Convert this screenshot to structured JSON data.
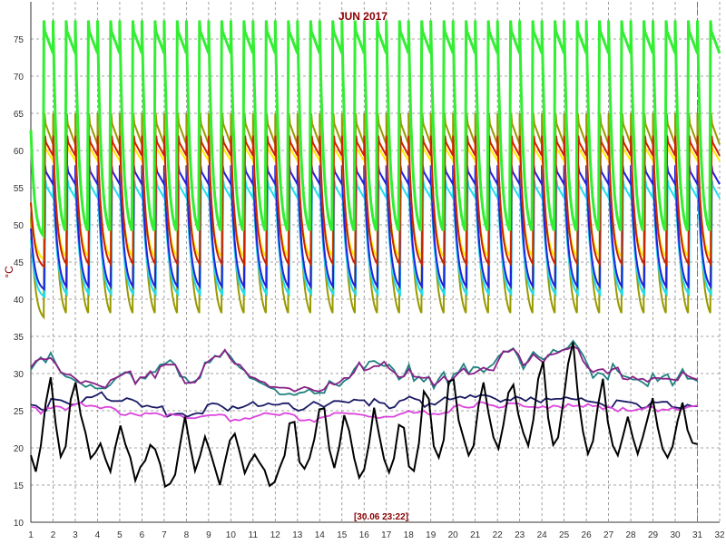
{
  "chart_data": {
    "type": "line",
    "title": "JUN 2017",
    "ylabel": "°C",
    "timestamp": "[30.06 23:22]",
    "ylim": [
      10,
      80
    ],
    "xlim": [
      1,
      32
    ],
    "y_ticks": [
      "10",
      "15",
      "20",
      "25",
      "30",
      "35",
      "40",
      "45",
      "50",
      "55",
      "60",
      "65",
      "70",
      "75"
    ],
    "x_ticks": [
      "1",
      "2",
      "3",
      "4",
      "5",
      "6",
      "7",
      "8",
      "9",
      "10",
      "11",
      "12",
      "13",
      "14",
      "15",
      "16",
      "17",
      "18",
      "19",
      "20",
      "21",
      "22",
      "23",
      "24",
      "25",
      "26",
      "27",
      "28",
      "29",
      "30",
      "31",
      "32"
    ],
    "grid": true,
    "cursor_x": 31,
    "colors": {
      "green": "#33ee33",
      "olive": "#999900",
      "red": "#cc2200",
      "yellow": "#ffee00",
      "blue": "#2222dd",
      "cyan": "#22ddee",
      "teal": "#208080",
      "purple": "#882288",
      "navy": "#1a1a66",
      "magenta": "#dd44dd",
      "black": "#000000",
      "cursor": "#22aa22",
      "grid": "#888888"
    },
    "daily_cycle": {
      "green": {
        "peak": 77.5,
        "trough": 48
      },
      "olive": {
        "peak": 65,
        "trough": 37
      },
      "red": {
        "peak": 62,
        "trough": 44
      },
      "yellow": {
        "peak": 61,
        "trough": 45
      },
      "blue": {
        "peak": 58,
        "trough": 41
      },
      "cyan": {
        "peak": 56,
        "trough": 40
      }
    },
    "series": [
      {
        "key": "teal",
        "values": [
          30.5,
          31.5,
          32.2,
          31.5,
          32.8,
          31.4,
          30.2,
          29.6,
          29.4,
          29.0,
          28.7,
          28.2,
          28.5,
          28.0,
          28.0,
          28.0,
          28.5,
          29.3,
          29.8,
          30.2,
          30.0,
          28.7,
          29.5,
          29.3,
          30.2,
          30.2,
          31.2,
          31.3,
          31.8,
          31.2,
          29.6,
          29.5,
          28.7,
          29.0,
          29.4,
          31.5,
          31.5,
          32.4,
          32.2,
          33.1,
          32.4,
          31.5,
          30.8,
          30.4,
          29.4,
          29.2,
          28.8,
          28.5,
          28.1,
          27.9,
          27.2,
          27.2,
          27.3,
          27.1,
          27.4,
          27.5,
          27.9,
          27.3,
          27.4,
          27.4,
          29.0,
          28.6,
          28.3,
          29.0,
          29.4,
          30.6,
          31.4,
          30.6,
          31.6,
          31.7,
          31.3,
          31.0,
          31.2,
          30.5,
          29.2,
          29.7,
          31.2,
          29.0,
          29.6,
          28.9,
          29.6,
          28.0,
          29.3,
          30.2,
          28.4,
          29.9,
          30.2,
          31.3,
          30.0,
          30.9,
          30.8,
          30.2,
          30.8,
          31.3,
          32.3,
          32.9,
          33.0,
          33.4,
          32.2,
          30.6,
          31.8,
          32.9,
          32.3,
          31.9,
          32.3,
          33.2,
          32.9,
          33.2,
          33.5,
          34.4,
          33.5,
          32.5,
          31.1,
          29.4,
          30.1,
          29.9,
          29.2,
          31.3,
          30.3,
          29.7,
          29.5,
          29.2,
          29.2,
          28.8,
          28.3,
          30.0,
          29.0,
          29.6,
          29.9,
          28.4,
          29.4,
          30.6,
          29.3,
          29.3,
          29.0
        ]
      },
      {
        "key": "purple",
        "values": [
          30.8,
          31.7,
          32.0,
          31.9,
          32.1,
          31.3,
          30.2,
          29.9,
          29.8,
          29.3,
          28.7,
          29.0,
          28.8,
          28.6,
          28.3,
          28.1,
          29.1,
          29.4,
          29.7,
          30.1,
          30.3,
          28.6,
          29.5,
          29.5,
          30.3,
          29.4,
          30.9,
          31.2,
          31.2,
          31.2,
          30.0,
          28.7,
          28.8,
          28.8,
          29.7,
          31.3,
          31.8,
          32.3,
          32.3,
          33.2,
          32.1,
          31.3,
          31.2,
          30.4,
          29.6,
          29.4,
          29.0,
          28.8,
          28.2,
          28.2,
          28.1,
          28.1,
          28.0,
          27.6,
          27.9,
          28.2,
          28.0,
          27.7,
          27.6,
          27.9,
          28.8,
          28.5,
          28.8,
          29.4,
          29.4,
          30.2,
          31.5,
          30.4,
          30.6,
          31.0,
          31.0,
          31.6,
          30.7,
          30.2,
          29.5,
          29.6,
          30.6,
          29.6,
          29.5,
          29.4,
          29.5,
          28.4,
          28.9,
          29.6,
          28.9,
          29.4,
          30.1,
          30.7,
          29.9,
          30.0,
          30.4,
          30.8,
          30.5,
          30.4,
          31.8,
          33.0,
          32.9,
          33.3,
          32.6,
          31.1,
          31.6,
          32.6,
          32.0,
          31.5,
          32.5,
          32.6,
          32.8,
          33.2,
          33.3,
          33.7,
          33.3,
          31.7,
          30.8,
          30.2,
          30.5,
          30.6,
          30.0,
          30.6,
          30.8,
          29.3,
          29.2,
          29.6,
          29.2,
          29.3,
          28.9,
          29.4,
          29.4,
          29.3,
          29.3,
          29.2,
          29.1,
          30.2,
          29.7,
          29.4,
          29.2
        ]
      },
      {
        "key": "navy",
        "values": [
          25.8,
          25.7,
          25.2,
          25.0,
          26.6,
          26.5,
          26.4,
          26.1,
          25.8,
          25.9,
          26.1,
          26.8,
          26.8,
          27.1,
          27.5,
          26.6,
          26.3,
          26.3,
          26.3,
          26.7,
          26.5,
          26.2,
          25.5,
          25.7,
          25.5,
          25.4,
          25.6,
          24.2,
          24.5,
          24.6,
          24.6,
          24.2,
          24.5,
          24.7,
          24.6,
          25.8,
          26.0,
          25.9,
          25.5,
          25.0,
          25.6,
          25.3,
          25.5,
          25.8,
          26.2,
          25.6,
          25.7,
          26.0,
          25.8,
          25.8,
          26.0,
          26.0,
          25.3,
          25.0,
          25.2,
          25.7,
          26.2,
          25.9,
          25.5,
          25.9,
          26.3,
          26.3,
          26.2,
          26.1,
          26.5,
          26.4,
          26.4,
          25.7,
          26.6,
          26.1,
          26.0,
          25.3,
          25.5,
          26.3,
          26.5,
          26.9,
          26.6,
          26.4,
          25.5,
          26.0,
          25.8,
          26.3,
          26.8,
          26.5,
          26.7,
          26.9,
          26.7,
          27.1,
          26.8,
          27.1,
          27.1,
          26.9,
          26.6,
          26.2,
          26.5,
          26.4,
          26.9,
          26.7,
          26.3,
          26.8,
          26.4,
          26.1,
          26.7,
          26.5,
          26.6,
          26.6,
          26.8,
          26.6,
          26.5,
          26.7,
          26.3,
          26.2,
          26.1,
          25.9,
          25.5,
          25.4,
          26.4,
          26.3,
          26.2,
          26.1,
          25.9,
          25.3,
          25.5,
          26.2,
          26.1,
          26.2,
          26.2,
          25.5,
          25.4,
          25.3,
          25.8,
          25.6,
          25.6
        ]
      },
      {
        "key": "magenta",
        "values": [
          25.5,
          25.4,
          24.6,
          25.4,
          25.3,
          25.6,
          25.5,
          25.1,
          25.6,
          25.9,
          26.1,
          25.6,
          25.7,
          25.6,
          25.3,
          25.5,
          25.5,
          25.2,
          24.5,
          24.4,
          24.7,
          24.5,
          24.3,
          24.7,
          24.6,
          24.7,
          24.5,
          24.2,
          24.6,
          24.4,
          24.4,
          24.0,
          24.0,
          24.0,
          24.2,
          24.3,
          24.4,
          24.4,
          24.5,
          24.4,
          23.6,
          23.8,
          23.7,
          24.0,
          23.9,
          24.2,
          24.4,
          24.7,
          24.6,
          24.5,
          24.4,
          24.7,
          24.6,
          24.4,
          23.7,
          23.7,
          23.8,
          23.5,
          24.0,
          24.2,
          24.3,
          24.7,
          24.7,
          24.7,
          24.6,
          24.6,
          24.5,
          24.4,
          24.2,
          24.2,
          24.0,
          24.2,
          24.2,
          24.2,
          24.5,
          24.7,
          25.0,
          24.7,
          24.8,
          25.0,
          24.5,
          24.6,
          24.5,
          24.7,
          24.8,
          25.5,
          25.8,
          25.5,
          25.4,
          25.5,
          26.2,
          26.1,
          25.8,
          25.7,
          25.4,
          25.5,
          26.0,
          26.0,
          26.0,
          25.6,
          25.5,
          25.5,
          25.4,
          25.6,
          25.3,
          25.7,
          25.6,
          25.3,
          25.9,
          25.6,
          25.7,
          25.5,
          25.9,
          25.6,
          25.7,
          25.2,
          25.6,
          25.3,
          24.9,
          25.4,
          25.0,
          25.0,
          25.2,
          25.2,
          25.5,
          25.5,
          24.9,
          25.2,
          25.1,
          25.4,
          25.1,
          25.2,
          25.5,
          25.6,
          25.7
        ]
      },
      {
        "key": "black",
        "values": [
          19.0,
          16.8,
          20.3,
          26.0,
          29.5,
          23.2,
          18.8,
          20.2,
          26.5,
          28.8,
          24.5,
          22.0,
          18.6,
          19.4,
          20.6,
          18.5,
          16.8,
          20.2,
          23.0,
          20.5,
          18.7,
          15.6,
          17.4,
          18.3,
          20.4,
          19.8,
          17.8,
          14.8,
          15.2,
          16.4,
          20.4,
          24.2,
          20.3,
          16.9,
          18.9,
          21.5,
          19.6,
          17.3,
          15.0,
          18.1,
          21.0,
          21.9,
          19.4,
          16.6,
          18.1,
          19.1,
          18.0,
          17.0,
          14.9,
          15.4,
          17.3,
          19.0,
          23.3,
          23.5,
          18.1,
          17.2,
          18.6,
          21.2,
          25.2,
          25.3,
          19.8,
          17.3,
          20.2,
          24.4,
          22.3,
          18.6,
          16.0,
          17.1,
          20.6,
          25.4,
          21.8,
          18.5,
          16.7,
          18.6,
          23.1,
          22.7,
          17.5,
          16.9,
          20.6,
          27.6,
          26.6,
          20.2,
          18.7,
          21.1,
          28.9,
          29.2,
          23.7,
          21.3,
          19.0,
          20.3,
          25.7,
          28.8,
          24.7,
          21.4,
          19.9,
          23.1,
          27.4,
          28.5,
          24.5,
          22.0,
          20.3,
          23.7,
          29.3,
          31.6,
          24.0,
          20.4,
          21.4,
          26.0,
          31.3,
          34.2,
          26.9,
          22.2,
          19.2,
          20.9,
          25.7,
          29.3,
          23.5,
          20.3,
          19.0,
          21.5,
          24.2,
          21.4,
          19.2,
          21.4,
          24.0,
          26.7,
          22.8,
          19.9,
          18.7,
          20.2,
          23.6,
          26.1,
          22.4,
          20.7,
          20.5
        ]
      }
    ]
  }
}
